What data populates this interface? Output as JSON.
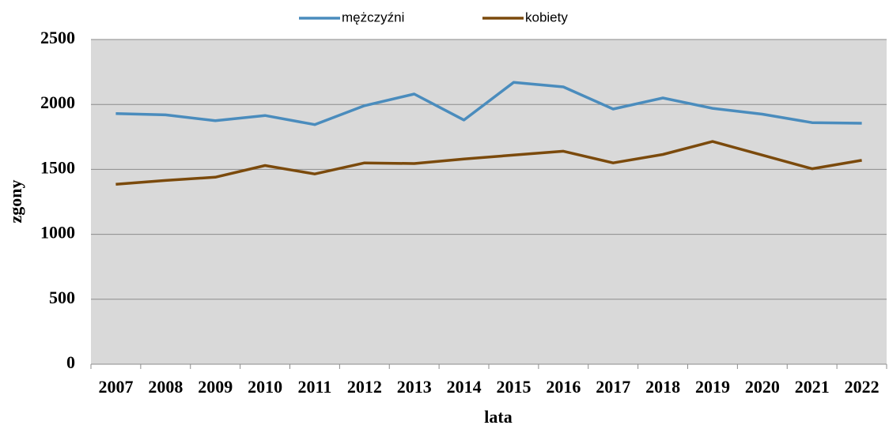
{
  "chart_data": {
    "type": "line",
    "x_label": "lata",
    "y_label": "zgony",
    "categories": [
      "2007",
      "2008",
      "2009",
      "2010",
      "2011",
      "2012",
      "2013",
      "2014",
      "2015",
      "2016",
      "2017",
      "2018",
      "2019",
      "2020",
      "2021",
      "2022"
    ],
    "series": [
      {
        "name": "mężczyźni",
        "color": "#4a8cbd",
        "values": [
          1930,
          1920,
          1875,
          1915,
          1845,
          1990,
          2080,
          1880,
          2170,
          2135,
          1965,
          2050,
          1970,
          1925,
          1860,
          1855
        ]
      },
      {
        "name": "kobiety",
        "color": "#7b4a0c",
        "values": [
          1385,
          1415,
          1440,
          1530,
          1465,
          1550,
          1545,
          1580,
          1610,
          1640,
          1550,
          1615,
          1715,
          1610,
          1505,
          1570
        ]
      }
    ],
    "ylim": [
      0,
      2500
    ],
    "yticks": [
      0,
      500,
      1000,
      1500,
      2000,
      2500
    ],
    "grid": true,
    "legend": "top"
  }
}
